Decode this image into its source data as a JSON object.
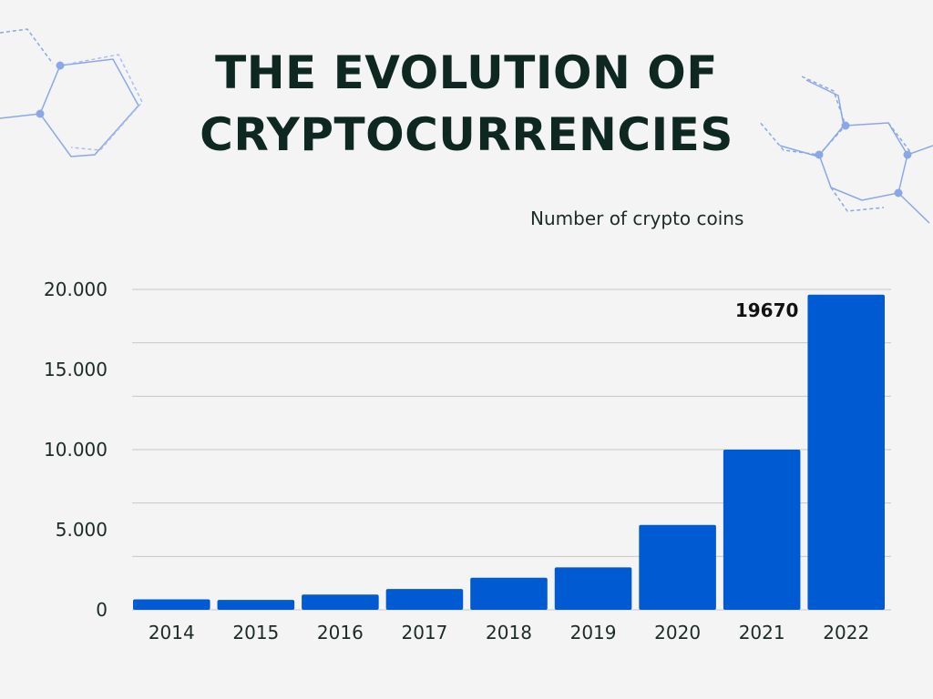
{
  "header": {
    "title_line1": "THE EVOLUTION OF",
    "title_line2": "CRYPTOCURRENCIES",
    "subtitle": "Number of crypto coins"
  },
  "chart_data": {
    "type": "bar",
    "categories": [
      "2014",
      "2015",
      "2016",
      "2017",
      "2018",
      "2019",
      "2020",
      "2021",
      "2022"
    ],
    "values": [
      650,
      620,
      950,
      1300,
      2000,
      2650,
      5300,
      10000,
      19670
    ],
    "ylim": [
      0,
      20000
    ],
    "y_ticks": [
      {
        "value": 0,
        "label": "0"
      },
      {
        "value": 5000,
        "label": "5.000"
      },
      {
        "value": 10000,
        "label": "10.000"
      },
      {
        "value": 15000,
        "label": "15.000"
      },
      {
        "value": 20000,
        "label": "20.000"
      }
    ],
    "gridlines": [
      0,
      3333,
      6667,
      10000,
      13333,
      16667,
      20000
    ],
    "grid": true,
    "data_labels": [
      {
        "category": "2022",
        "text": "19670"
      }
    ],
    "bar_color": "#005bd3",
    "decoration_color": "#7ea2e6"
  }
}
